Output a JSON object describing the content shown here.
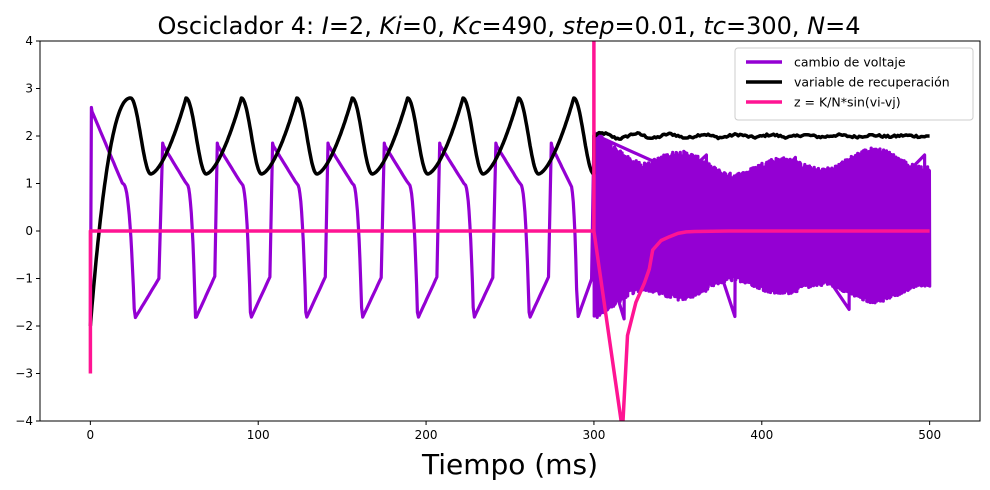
{
  "chart_data": {
    "type": "line",
    "title": {
      "prefix": "Osciclador 4: ",
      "params": [
        {
          "name": "I",
          "value": "2"
        },
        {
          "name": "Ki",
          "value": "0"
        },
        {
          "name": "Kc",
          "value": "490"
        },
        {
          "name": "step",
          "value": "0.01"
        },
        {
          "name": "tc",
          "value": "300"
        },
        {
          "name": "N",
          "value": "4"
        }
      ]
    },
    "xlabel": "Tiempo (ms)",
    "ylabel": "",
    "xlim": [
      -30,
      530
    ],
    "ylim": [
      -4,
      4
    ],
    "xticks": [
      0,
      100,
      200,
      300,
      400,
      500
    ],
    "yticks": [
      -4,
      -3,
      -2,
      -1,
      0,
      1,
      2,
      3,
      4
    ],
    "grid": false,
    "legend_position": "top-right",
    "series": [
      {
        "name": "cambio de voltaje",
        "color": "#9400d3",
        "spike_times": [
          0,
          42.5,
          75,
          108,
          141,
          174.5,
          207.5,
          241,
          274
        ],
        "peak": 1.85,
        "first_peak": 2.6,
        "trough": -1.85,
        "noisy_band_after_300": {
          "x": [
            300,
            500
          ],
          "upper": 1.4,
          "lower": -1.2,
          "max_spike": 2.0,
          "min_spike": -1.85
        }
      },
      {
        "name": "variable de recuperación",
        "color": "#000000",
        "peak_times": [
          24,
          57,
          90,
          123,
          156,
          189,
          222,
          255,
          288
        ],
        "max": 2.8,
        "min": 1.2,
        "start": -2.0,
        "after_300_level": 2.0
      },
      {
        "name": "z = K/N*sin(vi-vj)",
        "color": "#ff1493",
        "x": [
          0,
          0,
          1,
          300,
          300,
          300,
          317,
          320,
          325,
          330,
          333,
          335,
          340,
          345,
          350,
          355,
          360,
          380,
          420,
          500
        ],
        "y": [
          -3.0,
          0,
          0,
          0,
          4.2,
          0,
          -4.2,
          -2.2,
          -1.5,
          -1.1,
          -0.8,
          -0.4,
          -0.2,
          -0.12,
          -0.05,
          -0.02,
          -0.01,
          0,
          0,
          0
        ]
      }
    ]
  }
}
